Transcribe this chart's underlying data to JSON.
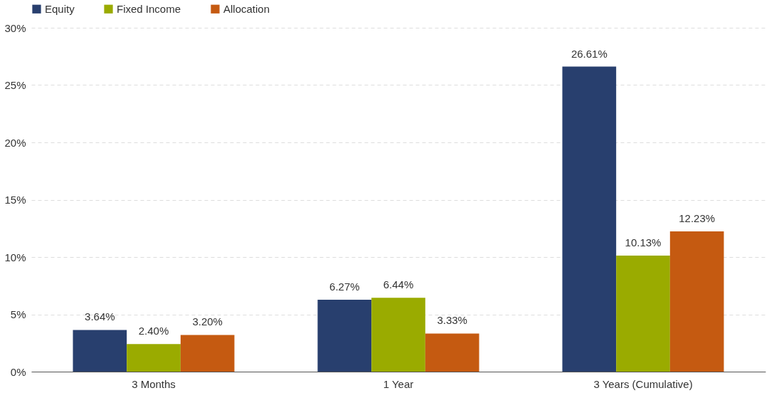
{
  "chart_data": {
    "type": "bar",
    "categories": [
      "3 Months",
      "1 Year",
      "3 Years (Cumulative)"
    ],
    "series": [
      {
        "name": "Equity",
        "color": "#283f6e",
        "values": [
          3.64,
          6.27,
          26.61
        ],
        "value_labels": [
          "3.64%",
          "6.27%",
          "26.61%"
        ]
      },
      {
        "name": "Fixed Income",
        "color": "#9aab00",
        "values": [
          2.4,
          6.44,
          10.13
        ],
        "value_labels": [
          "2.40%",
          "6.44%",
          "10.13%"
        ]
      },
      {
        "name": "Allocation",
        "color": "#c55a11",
        "values": [
          3.2,
          3.33,
          12.23
        ],
        "value_labels": [
          "3.20%",
          "3.33%",
          "12.23%"
        ]
      }
    ],
    "ylim": [
      0,
      30
    ],
    "yticks": [
      {
        "value": 0,
        "label": "0%"
      },
      {
        "value": 5,
        "label": "5%"
      },
      {
        "value": 10,
        "label": "10%"
      },
      {
        "value": 15,
        "label": "15%"
      },
      {
        "value": 20,
        "label": "20%"
      },
      {
        "value": 25,
        "label": "25%"
      },
      {
        "value": 30,
        "label": "30%"
      }
    ],
    "grid": "y",
    "legend": "top left"
  }
}
